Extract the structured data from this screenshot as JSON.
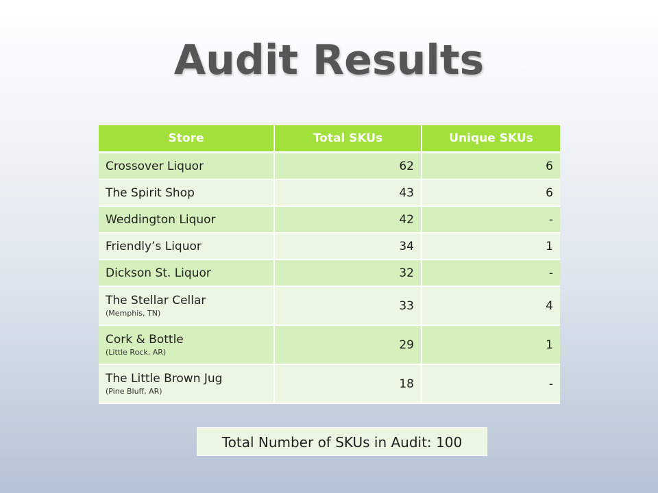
{
  "title": "Audit Results",
  "colors": {
    "header_bg": "#a2e03c",
    "row_odd": "#d6f0bd",
    "row_even": "#ecf7e3",
    "title_text": "#565656"
  },
  "table": {
    "headers": [
      "Store",
      "Total SKUs",
      "Unique SKUs"
    ],
    "rows": [
      {
        "store": "Crossover Liquor",
        "location": "",
        "total": "62",
        "unique": "6"
      },
      {
        "store": "The Spirit Shop",
        "location": "",
        "total": "43",
        "unique": "6"
      },
      {
        "store": "Weddington Liquor",
        "location": "",
        "total": "42",
        "unique": "-"
      },
      {
        "store": "Friendly’s Liquor",
        "location": "",
        "total": "34",
        "unique": "1"
      },
      {
        "store": "Dickson St. Liquor",
        "location": "",
        "total": "32",
        "unique": "-"
      },
      {
        "store": "The Stellar Cellar",
        "location": "(Memphis, TN)",
        "total": "33",
        "unique": "4"
      },
      {
        "store": "Cork & Bottle",
        "location": "(Little Rock, AR)",
        "total": "29",
        "unique": "1"
      },
      {
        "store": "The Little Brown Jug",
        "location": "(Pine Bluff, AR)",
        "total": "18",
        "unique": "-"
      }
    ]
  },
  "total_box": {
    "text": "Total Number of SKUs in Audit: 100"
  }
}
